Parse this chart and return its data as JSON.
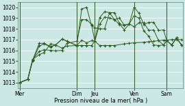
{
  "xlabel": "Pression niveau de la mer( hPa )",
  "bg_color": "#cce8e4",
  "grid_color": "#ffffff",
  "line_color": "#2d5a1e",
  "ylim": [
    1012.5,
    1020.5
  ],
  "yticks": [
    1013,
    1014,
    1015,
    1016,
    1017,
    1018,
    1019,
    1020
  ],
  "xtick_labels": [
    "Mer",
    "Dim",
    "Jeu",
    "Ven",
    "Sam"
  ],
  "xtick_positions": [
    0,
    35,
    46,
    70,
    90
  ],
  "series1": [
    [
      0,
      1013.0
    ],
    [
      5,
      1013.3
    ],
    [
      8,
      1015.15
    ],
    [
      12,
      1015.9
    ],
    [
      15,
      1016.05
    ],
    [
      19,
      1016.0
    ],
    [
      22,
      1015.95
    ],
    [
      26,
      1016.0
    ],
    [
      29,
      1016.65
    ],
    [
      35,
      1016.85
    ],
    [
      38,
      1018.85
    ],
    [
      41,
      1018.85
    ],
    [
      44,
      1018.4
    ],
    [
      46,
      1016.85
    ],
    [
      49,
      1018.45
    ],
    [
      52,
      1019.1
    ],
    [
      55,
      1019.0
    ],
    [
      58,
      1018.85
    ],
    [
      61,
      1019.0
    ],
    [
      64,
      1018.35
    ],
    [
      67,
      1018.45
    ],
    [
      70,
      1020.0
    ],
    [
      73,
      1019.45
    ],
    [
      76,
      1018.4
    ],
    [
      79,
      1018.6
    ],
    [
      82,
      1018.6
    ],
    [
      85,
      1017.85
    ],
    [
      88,
      1017.9
    ],
    [
      90,
      1016.9
    ],
    [
      93,
      1016.5
    ],
    [
      96,
      1017.15
    ],
    [
      99,
      1016.5
    ]
  ],
  "series2": [
    [
      0,
      1013.0
    ],
    [
      5,
      1013.3
    ],
    [
      8,
      1015.15
    ],
    [
      12,
      1015.6
    ],
    [
      15,
      1015.8
    ],
    [
      19,
      1016.6
    ],
    [
      22,
      1016.5
    ],
    [
      26,
      1016.2
    ],
    [
      29,
      1016.4
    ],
    [
      35,
      1016.45
    ],
    [
      38,
      1016.95
    ],
    [
      41,
      1016.7
    ],
    [
      44,
      1016.9
    ],
    [
      46,
      1016.85
    ],
    [
      49,
      1019.05
    ],
    [
      52,
      1019.6
    ],
    [
      55,
      1019.5
    ],
    [
      58,
      1018.85
    ],
    [
      61,
      1018.4
    ],
    [
      64,
      1018.35
    ],
    [
      67,
      1018.45
    ],
    [
      70,
      1019.2
    ],
    [
      73,
      1019.0
    ],
    [
      76,
      1017.8
    ],
    [
      79,
      1017.3
    ],
    [
      82,
      1016.5
    ],
    [
      85,
      1016.45
    ],
    [
      88,
      1016.5
    ],
    [
      90,
      1016.9
    ],
    [
      93,
      1016.5
    ],
    [
      96,
      1017.15
    ],
    [
      99,
      1016.5
    ]
  ],
  "series3": [
    [
      0,
      1013.0
    ],
    [
      5,
      1013.3
    ],
    [
      8,
      1015.05
    ],
    [
      12,
      1016.4
    ],
    [
      15,
      1016.6
    ],
    [
      19,
      1016.3
    ],
    [
      22,
      1016.5
    ],
    [
      26,
      1017.05
    ],
    [
      29,
      1016.85
    ],
    [
      35,
      1016.45
    ],
    [
      38,
      1016.45
    ],
    [
      41,
      1016.45
    ],
    [
      44,
      1016.45
    ],
    [
      46,
      1016.85
    ],
    [
      49,
      1016.45
    ],
    [
      52,
      1016.45
    ],
    [
      55,
      1016.45
    ],
    [
      58,
      1016.45
    ],
    [
      64,
      1016.6
    ],
    [
      67,
      1016.65
    ],
    [
      70,
      1016.7
    ],
    [
      76,
      1016.75
    ],
    [
      79,
      1016.8
    ],
    [
      82,
      1016.85
    ],
    [
      85,
      1016.9
    ],
    [
      88,
      1016.95
    ],
    [
      90,
      1016.95
    ],
    [
      93,
      1017.0
    ],
    [
      96,
      1017.0
    ],
    [
      99,
      1017.0
    ]
  ],
  "series4": [
    [
      0,
      1013.0
    ],
    [
      5,
      1013.3
    ],
    [
      8,
      1015.1
    ],
    [
      12,
      1016.65
    ],
    [
      15,
      1016.65
    ],
    [
      19,
      1016.35
    ],
    [
      22,
      1016.5
    ],
    [
      26,
      1017.05
    ],
    [
      29,
      1016.85
    ],
    [
      35,
      1016.45
    ],
    [
      38,
      1019.85
    ],
    [
      41,
      1020.0
    ],
    [
      44,
      1018.3
    ],
    [
      46,
      1018.1
    ],
    [
      49,
      1018.0
    ],
    [
      52,
      1018.0
    ],
    [
      55,
      1019.5
    ],
    [
      58,
      1019.5
    ],
    [
      61,
      1018.5
    ],
    [
      64,
      1017.9
    ],
    [
      67,
      1018.45
    ],
    [
      70,
      1018.2
    ],
    [
      73,
      1018.55
    ],
    [
      76,
      1018.55
    ],
    [
      79,
      1017.85
    ],
    [
      82,
      1017.9
    ],
    [
      85,
      1016.9
    ],
    [
      88,
      1016.5
    ],
    [
      90,
      1016.9
    ],
    [
      93,
      1016.5
    ],
    [
      96,
      1017.15
    ],
    [
      99,
      1016.5
    ]
  ],
  "n_points": 100
}
